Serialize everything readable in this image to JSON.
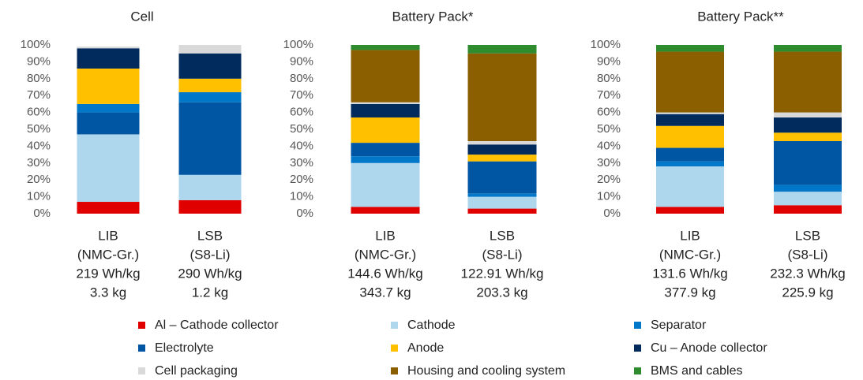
{
  "legend": [
    {
      "name": "Al – Cathode collector",
      "color": "#e00000"
    },
    {
      "name": "Cathode",
      "color": "#aed6ec"
    },
    {
      "name": "Separator",
      "color": "#0077c8"
    },
    {
      "name": "Electrolyte",
      "color": "#0056a2"
    },
    {
      "name": "Anode",
      "color": "#ffc000"
    },
    {
      "name": "Cu – Anode collector",
      "color": "#002b5c"
    },
    {
      "name": "Cell packaging",
      "color": "#d9d9d9"
    },
    {
      "name": "Housing and cooling system",
      "color": "#8b5e00"
    },
    {
      "name": "BMS and cables",
      "color": "#2e8b2e"
    }
  ],
  "chart_data": [
    {
      "type": "stacked_bar",
      "title": "Cell",
      "categories": [
        [
          "LIB",
          "(NMC-Gr.)",
          "219 Wh/kg",
          "3.3 kg"
        ],
        [
          "LSB",
          "(S8-Li)",
          "290 Wh/kg",
          "1.2 kg"
        ]
      ],
      "ylim": [
        0,
        100
      ],
      "yticks": [
        {
          "value": 0,
          "label": "0%"
        },
        {
          "value": 10,
          "label": "10%"
        },
        {
          "value": 20,
          "label": "20%"
        },
        {
          "value": 30,
          "label": "30%"
        },
        {
          "value": 40,
          "label": "40%"
        },
        {
          "value": 50,
          "label": "50%"
        },
        {
          "value": 60,
          "label": "60%"
        },
        {
          "value": 70,
          "label": "70%"
        },
        {
          "value": 80,
          "label": "80%"
        },
        {
          "value": 90,
          "label": "90%"
        },
        {
          "value": 100,
          "label": "100%"
        }
      ],
      "series": [
        {
          "name": "Al – Cathode collector",
          "values": [
            7,
            8
          ]
        },
        {
          "name": "Cathode",
          "values": [
            40,
            15
          ]
        },
        {
          "name": "Electrolyte",
          "values": [
            13,
            43
          ]
        },
        {
          "name": "Separator",
          "values": [
            5,
            6
          ]
        },
        {
          "name": "Anode",
          "values": [
            21,
            8
          ]
        },
        {
          "name": "Cu – Anode collector",
          "values": [
            12,
            15
          ]
        },
        {
          "name": "Cell packaging",
          "values": [
            1,
            5
          ]
        }
      ]
    },
    {
      "type": "stacked_bar",
      "title": "Battery Pack*",
      "categories": [
        [
          "LIB",
          "(NMC-Gr.)",
          "144.6 Wh/kg",
          "343.7 kg"
        ],
        [
          "LSB",
          "(S8-Li)",
          "122.91 Wh/kg",
          "203.3 kg"
        ]
      ],
      "ylim": [
        0,
        100
      ],
      "yticks": [
        {
          "value": 0,
          "label": "0%"
        },
        {
          "value": 10,
          "label": "10%"
        },
        {
          "value": 20,
          "label": "20%"
        },
        {
          "value": 30,
          "label": "30%"
        },
        {
          "value": 40,
          "label": "40%"
        },
        {
          "value": 50,
          "label": "50%"
        },
        {
          "value": 60,
          "label": "60%"
        },
        {
          "value": 70,
          "label": "70%"
        },
        {
          "value": 80,
          "label": "80%"
        },
        {
          "value": 90,
          "label": "90%"
        },
        {
          "value": 100,
          "label": "100%"
        }
      ],
      "series": [
        {
          "name": "Al – Cathode collector",
          "values": [
            4,
            3
          ]
        },
        {
          "name": "Cathode",
          "values": [
            26,
            7
          ]
        },
        {
          "name": "Separator",
          "values": [
            4,
            2
          ]
        },
        {
          "name": "Electrolyte",
          "values": [
            8,
            19
          ]
        },
        {
          "name": "Anode",
          "values": [
            15,
            4
          ]
        },
        {
          "name": "Cu – Anode collector",
          "values": [
            8,
            6
          ]
        },
        {
          "name": "Cell packaging",
          "values": [
            1,
            2
          ]
        },
        {
          "name": "Housing and cooling system",
          "values": [
            31,
            52
          ]
        },
        {
          "name": "BMS and cables",
          "values": [
            3,
            5
          ]
        }
      ]
    },
    {
      "type": "stacked_bar",
      "title": "Battery Pack**",
      "categories": [
        [
          "LIB",
          "(NMC-Gr.)",
          "131.6 Wh/kg",
          "377.9 kg"
        ],
        [
          "LSB",
          "(S8-Li)",
          "232.3 Wh/kg",
          "225.9 kg"
        ]
      ],
      "ylim": [
        0,
        100
      ],
      "yticks": [
        {
          "value": 0,
          "label": "0%"
        },
        {
          "value": 10,
          "label": "10%"
        },
        {
          "value": 20,
          "label": "20%"
        },
        {
          "value": 30,
          "label": "30%"
        },
        {
          "value": 40,
          "label": "40%"
        },
        {
          "value": 50,
          "label": "50%"
        },
        {
          "value": 60,
          "label": "60%"
        },
        {
          "value": 70,
          "label": "70%"
        },
        {
          "value": 80,
          "label": "80%"
        },
        {
          "value": 90,
          "label": "90%"
        },
        {
          "value": 100,
          "label": "100%"
        }
      ],
      "series": [
        {
          "name": "Al – Cathode collector",
          "values": [
            4,
            5
          ]
        },
        {
          "name": "Cathode",
          "values": [
            24,
            8
          ]
        },
        {
          "name": "Separator",
          "values": [
            3,
            4
          ]
        },
        {
          "name": "Electrolyte",
          "values": [
            8,
            26
          ]
        },
        {
          "name": "Anode",
          "values": [
            13,
            5
          ]
        },
        {
          "name": "Cu – Anode collector",
          "values": [
            7,
            9
          ]
        },
        {
          "name": "Cell packaging",
          "values": [
            1,
            3
          ]
        },
        {
          "name": "Housing and cooling system",
          "values": [
            36,
            36
          ]
        },
        {
          "name": "BMS and cables",
          "values": [
            4,
            4
          ]
        }
      ]
    }
  ]
}
